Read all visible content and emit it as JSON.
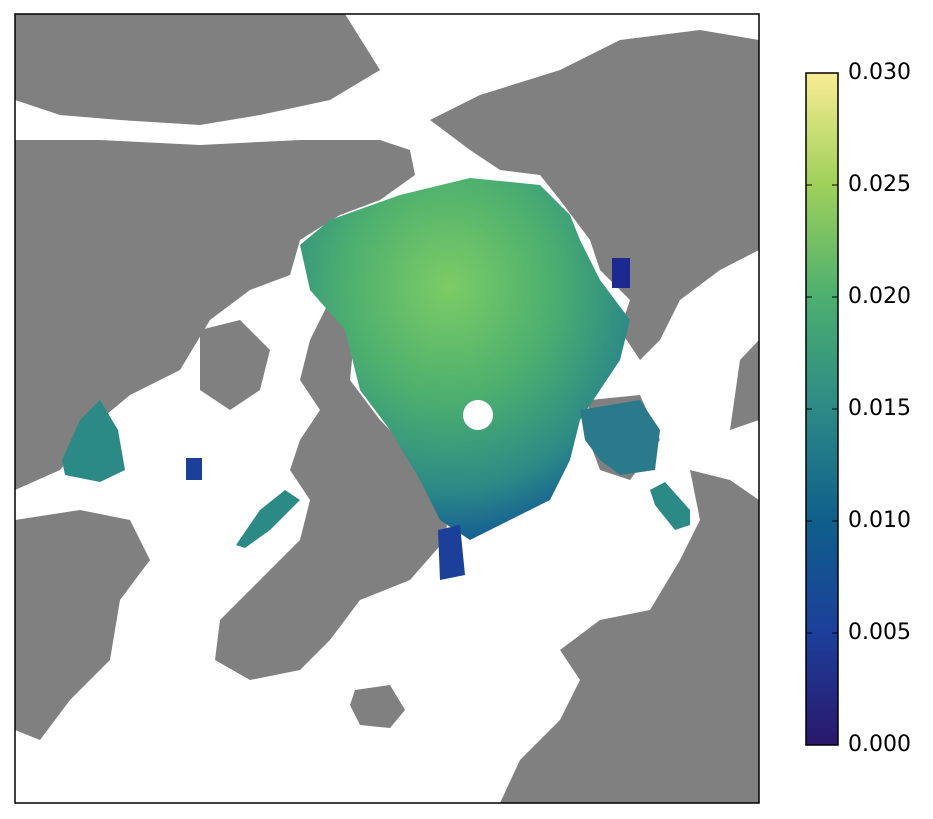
{
  "chart_data": {
    "type": "heatmap",
    "clim": [
      0,
      0.03
    ],
    "cticks": [
      {
        "value": 0,
        "label": "0.000"
      },
      0.005,
      {
        "value": 0.01,
        "label": "0.010"
      },
      0.015,
      {
        "value": 0.02,
        "label": "0.020"
      },
      0.025,
      {
        "value": 0.03,
        "label": "0.030"
      }
    ],
    "colormap": [
      "#2a186c",
      "#1c3f9a",
      "#0f5f8c",
      "#2c8a86",
      "#4caf6f",
      "#9fd05a",
      "#f8ec94"
    ]
  }
}
